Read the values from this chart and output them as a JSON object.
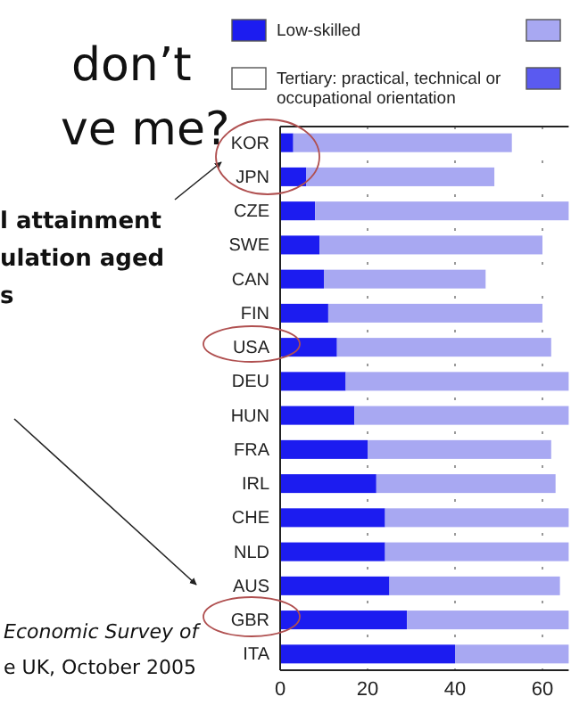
{
  "chart_data": {
    "type": "bar",
    "orientation": "horizontal",
    "stacked": true,
    "categories": [
      "KOR",
      "JPN",
      "CZE",
      "SWE",
      "CAN",
      "FIN",
      "USA",
      "DEU",
      "HUN",
      "FRA",
      "IRL",
      "CHE",
      "NLD",
      "AUS",
      "GBR",
      "ITA"
    ],
    "series": [
      {
        "name": "Low-skilled",
        "color": "#1c1cf0",
        "values": [
          3,
          6,
          8,
          9,
          10,
          11,
          13,
          15,
          17,
          20,
          22,
          24,
          24,
          25,
          29,
          40
        ]
      },
      {
        "color": "#a8a8f2",
        "values": [
          50,
          43,
          58,
          51,
          37,
          49,
          49,
          51,
          49,
          42,
          41,
          42,
          42,
          39,
          37,
          26
        ]
      },
      {
        "name": "Tertiary: practical, technical or occupational orientation",
        "color": "#ffffff",
        "values": [
          null,
          null,
          null,
          null,
          null,
          null,
          null,
          null,
          null,
          null,
          null,
          null,
          null,
          null,
          null,
          null
        ]
      }
    ],
    "xlim": [
      0,
      66
    ],
    "xticks": [
      0,
      20,
      40,
      60
    ],
    "grid": "x",
    "legend": "top",
    "annotations": [
      "don’t",
      "ve me?",
      "l attainment",
      "ulation aged",
      "s",
      "Economic Survey of",
      "e UK, October 2005"
    ]
  }
}
